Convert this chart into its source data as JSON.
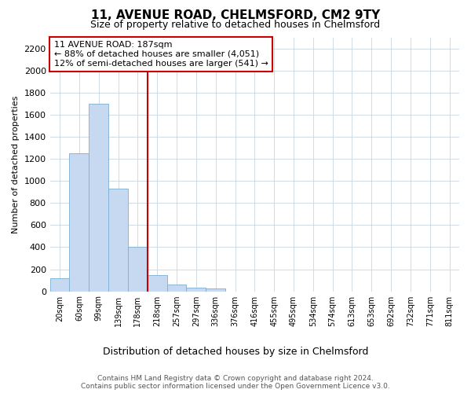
{
  "title_line1": "11, AVENUE ROAD, CHELMSFORD, CM2 9TY",
  "title_line2": "Size of property relative to detached houses in Chelmsford",
  "xlabel": "Distribution of detached houses by size in Chelmsford",
  "ylabel": "Number of detached properties",
  "categories": [
    "20sqm",
    "60sqm",
    "99sqm",
    "139sqm",
    "178sqm",
    "218sqm",
    "257sqm",
    "297sqm",
    "336sqm",
    "376sqm",
    "416sqm",
    "455sqm",
    "495sqm",
    "534sqm",
    "574sqm",
    "613sqm",
    "653sqm",
    "692sqm",
    "732sqm",
    "771sqm",
    "811sqm"
  ],
  "values": [
    115,
    1250,
    1700,
    930,
    400,
    150,
    65,
    35,
    25,
    0,
    0,
    0,
    0,
    0,
    0,
    0,
    0,
    0,
    0,
    0,
    0
  ],
  "bar_color": "#c6d9f0",
  "bar_edge_color": "#7bafd4",
  "vline_color": "#cc0000",
  "vline_index": 4,
  "ylim": [
    0,
    2300
  ],
  "yticks": [
    0,
    200,
    400,
    600,
    800,
    1000,
    1200,
    1400,
    1600,
    1800,
    2000,
    2200
  ],
  "annotation_line1": "11 AVENUE ROAD: 187sqm",
  "annotation_line2": "← 88% of detached houses are smaller (4,051)",
  "annotation_line3": "12% of semi-detached houses are larger (541) →",
  "annotation_box_color": "#ffffff",
  "annotation_box_edge": "#cc0000",
  "footer_line1": "Contains HM Land Registry data © Crown copyright and database right 2024.",
  "footer_line2": "Contains public sector information licensed under the Open Government Licence v3.0.",
  "background_color": "#ffffff",
  "grid_color": "#c8d4e0"
}
